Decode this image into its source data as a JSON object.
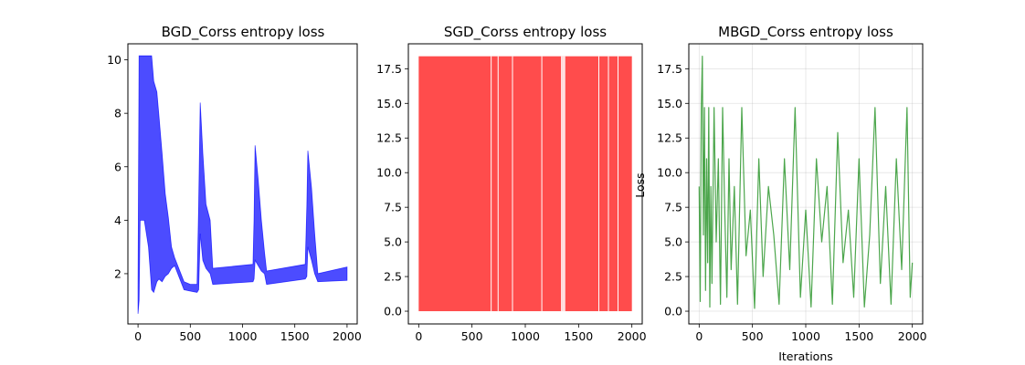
{
  "chart_data": [
    {
      "type": "line",
      "title": "BGD_Corss entropy loss",
      "xlabel": "",
      "ylabel": "",
      "xlim": [
        -97,
        2097
      ],
      "ylim": [
        0.12,
        10.6
      ],
      "xticks": [
        0,
        500,
        1000,
        1500,
        2000
      ],
      "yticks": [
        2,
        4,
        6,
        8,
        10
      ],
      "ytick_labels": [
        "2",
        "4",
        "6",
        "8",
        "10"
      ],
      "grid": false,
      "color": "#0000ff",
      "series": [
        {
          "envelope": [
            {
              "x": 0,
              "low": 0.5,
              "high": 1.5
            },
            {
              "x": 10,
              "low": 1.0,
              "high": 10.15
            },
            {
              "x": 20,
              "low": 4.0,
              "high": 10.15
            },
            {
              "x": 60,
              "low": 4.0,
              "high": 10.15
            },
            {
              "x": 100,
              "low": 3.0,
              "high": 10.15
            },
            {
              "x": 130,
              "low": 1.4,
              "high": 10.15
            },
            {
              "x": 150,
              "low": 1.3,
              "high": 9.2
            },
            {
              "x": 180,
              "low": 1.7,
              "high": 8.8
            },
            {
              "x": 200,
              "low": 1.8,
              "high": 7.9
            },
            {
              "x": 230,
              "low": 1.7,
              "high": 6.5
            },
            {
              "x": 260,
              "low": 1.9,
              "high": 5.0
            },
            {
              "x": 290,
              "low": 2.0,
              "high": 4.1
            },
            {
              "x": 320,
              "low": 2.2,
              "high": 3.0
            },
            {
              "x": 350,
              "low": 2.3,
              "high": 2.6
            },
            {
              "x": 440,
              "low": 1.4,
              "high": 1.7
            },
            {
              "x": 500,
              "low": 1.35,
              "high": 1.6
            },
            {
              "x": 565,
              "low": 1.3,
              "high": 1.6
            },
            {
              "x": 580,
              "low": 1.4,
              "high": 4.5
            },
            {
              "x": 595,
              "low": 3.5,
              "high": 8.4
            },
            {
              "x": 620,
              "low": 2.5,
              "high": 6.5
            },
            {
              "x": 650,
              "low": 2.2,
              "high": 4.6
            },
            {
              "x": 690,
              "low": 2.0,
              "high": 4.0
            },
            {
              "x": 715,
              "low": 1.6,
              "high": 2.2
            },
            {
              "x": 1100,
              "low": 1.7,
              "high": 2.35
            },
            {
              "x": 1110,
              "low": 1.8,
              "high": 4.0
            },
            {
              "x": 1120,
              "low": 2.5,
              "high": 6.8
            },
            {
              "x": 1150,
              "low": 2.3,
              "high": 5.5
            },
            {
              "x": 1180,
              "low": 2.1,
              "high": 4.0
            },
            {
              "x": 1210,
              "low": 2.0,
              "high": 2.8
            },
            {
              "x": 1230,
              "low": 1.6,
              "high": 2.1
            },
            {
              "x": 1600,
              "low": 1.8,
              "high": 2.35
            },
            {
              "x": 1615,
              "low": 1.9,
              "high": 4.5
            },
            {
              "x": 1625,
              "low": 3.0,
              "high": 6.6
            },
            {
              "x": 1660,
              "low": 2.5,
              "high": 5.2
            },
            {
              "x": 1690,
              "low": 2.0,
              "high": 3.5
            },
            {
              "x": 1720,
              "low": 1.7,
              "high": 2.0
            },
            {
              "x": 2000,
              "low": 1.75,
              "high": 2.25
            }
          ]
        }
      ]
    },
    {
      "type": "line",
      "title": "SGD_Corss entropy loss",
      "xlabel": "",
      "ylabel": "Loss",
      "xlim": [
        -97,
        2097
      ],
      "ylim": [
        -0.92,
        19.3
      ],
      "xticks": [
        0,
        500,
        1000,
        1500,
        2000
      ],
      "yticks": [
        0,
        2.5,
        5,
        7.5,
        10,
        12.5,
        15,
        17.5
      ],
      "ytick_labels": [
        "0.0",
        "2.5",
        "5.0",
        "7.5",
        "10.0",
        "12.5",
        "15.0",
        "17.5"
      ],
      "grid": false,
      "color": "#ff0000",
      "series": [
        {
          "band": {
            "x_start": 0,
            "x_end": 2000,
            "low": 0,
            "high": 18.4
          },
          "gaps_x": [
            680,
            745,
            880,
            1155,
            1340,
            1350,
            1360,
            1370,
            1690,
            1780,
            1870
          ]
        }
      ]
    },
    {
      "type": "line",
      "title": "MBGD_Corss entropy loss",
      "xlabel": "Iterations",
      "ylabel": "",
      "xlim": [
        -97,
        2097
      ],
      "ylim": [
        -0.92,
        19.3
      ],
      "xticks": [
        0,
        500,
        1000,
        1500,
        2000
      ],
      "yticks": [
        0,
        2.5,
        5,
        7.5,
        10,
        12.5,
        15,
        17.5
      ],
      "ytick_labels": [
        "0.0",
        "2.5",
        "5.0",
        "7.5",
        "10.0",
        "12.5",
        "15.0",
        "17.5"
      ],
      "grid": true,
      "color": "#008000",
      "series": [
        {
          "x": [
            0,
            10,
            20,
            30,
            40,
            50,
            60,
            70,
            80,
            90,
            100,
            110,
            120,
            140,
            160,
            180,
            200,
            220,
            240,
            260,
            280,
            300,
            330,
            360,
            400,
            440,
            480,
            520,
            560,
            600,
            650,
            700,
            750,
            800,
            850,
            900,
            950,
            1000,
            1050,
            1100,
            1150,
            1200,
            1250,
            1300,
            1350,
            1400,
            1450,
            1500,
            1550,
            1600,
            1650,
            1700,
            1750,
            1800,
            1850,
            1900,
            1950,
            1980,
            2000
          ],
          "values": [
            9.0,
            0.7,
            14.7,
            18.4,
            5.5,
            14.7,
            1.5,
            11.0,
            3.5,
            14.7,
            0.3,
            9.0,
            2.0,
            14.7,
            5.0,
            11.0,
            0.5,
            14.7,
            7.3,
            1.0,
            11.0,
            3.0,
            9.0,
            0.5,
            14.7,
            4.0,
            7.3,
            0.2,
            11.0,
            2.5,
            9.0,
            5.5,
            0.5,
            11.0,
            3.0,
            14.7,
            1.0,
            7.3,
            0.3,
            11.0,
            5.0,
            9.0,
            0.5,
            12.9,
            3.5,
            7.3,
            1.0,
            11.0,
            0.3,
            5.5,
            14.7,
            2.0,
            9.0,
            0.5,
            11.0,
            3.0,
            14.7,
            1.0,
            3.5
          ]
        }
      ]
    }
  ]
}
